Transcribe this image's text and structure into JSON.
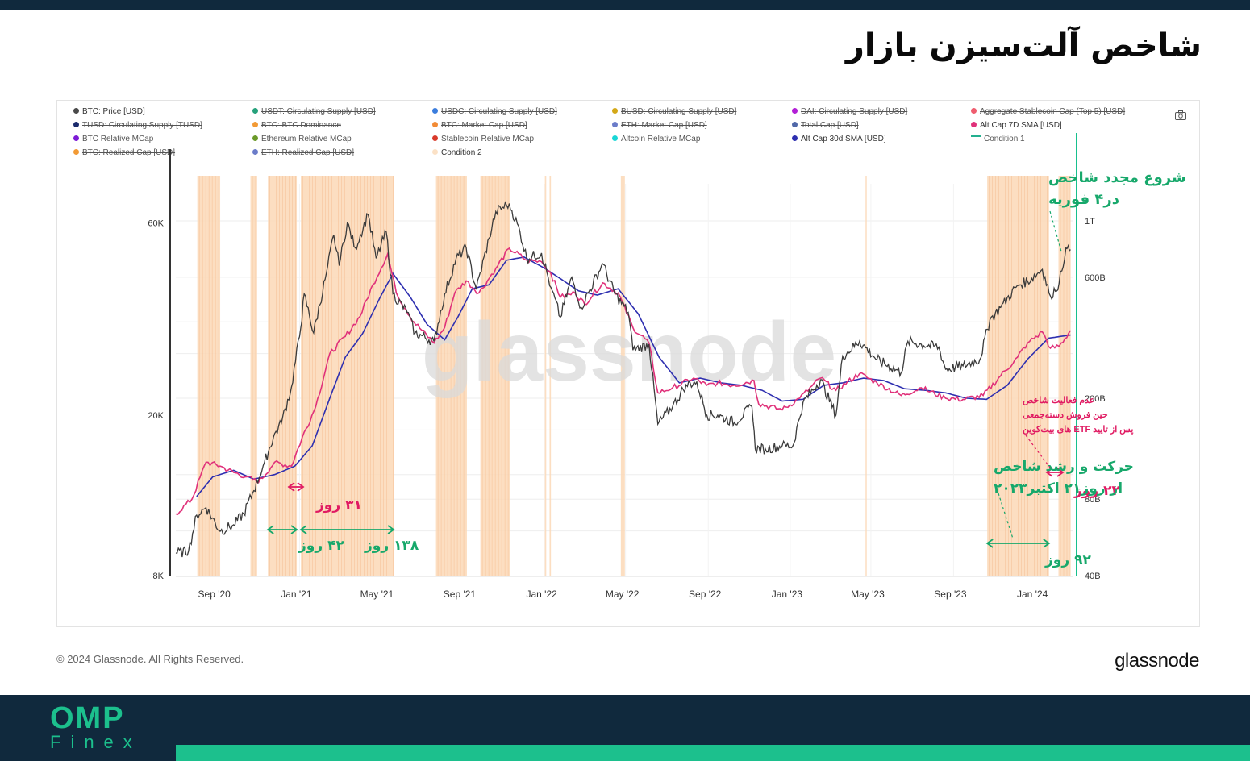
{
  "page_title": "شاخص آلت‌سیزن بازار",
  "copyright": "© 2024 Glassnode. All Rights Reserved.",
  "brand_logo": "glassnode",
  "watermark": "glassnode",
  "footer_logo": {
    "top": "OMP",
    "bottom": "Finex"
  },
  "colors": {
    "price": "#3b3b3b",
    "altcap_7d": "#e0317a",
    "altcap_30d": "#2e2fb0",
    "condition": "#fbd8b6",
    "annotation_green": "#17a86b",
    "annotation_pink": "#e01a62",
    "header": "#10293d",
    "accent": "#1cc08d"
  },
  "legend": [
    {
      "label": "BTC: Price [USD]",
      "color": "#4a4a4a",
      "active": true
    },
    {
      "label": "USDT: Circulating Supply [USD]",
      "color": "#26a17b",
      "active": false
    },
    {
      "label": "USDC: Circulating Supply [USD]",
      "color": "#3b7ddd",
      "active": false
    },
    {
      "label": "BUSD: Circulating Supply [USD]",
      "color": "#d4a817",
      "active": false
    },
    {
      "label": "DAI: Circulating Supply [USD]",
      "color": "#b21fd6",
      "active": false
    },
    {
      "label": "Aggregate Stablecoin Cap (Top 5) [USD]",
      "color": "#ef5d6f",
      "active": false
    },
    {
      "label": "TUSD: Circulating Supply [TUSD]",
      "color": "#1a2a6c",
      "active": false
    },
    {
      "label": "BTC: BTC Dominance",
      "color": "#f29a35",
      "active": false
    },
    {
      "label": "BTC: Market Cap [USD]",
      "color": "#f28b35",
      "active": false
    },
    {
      "label": "ETH: Market Cap [USD]",
      "color": "#6b7cc9",
      "active": false
    },
    {
      "label": "Total Cap [USD]",
      "color": "#5068a8",
      "active": false
    },
    {
      "label": "Alt Cap 7D SMA [USD]",
      "color": "#e0317a",
      "active": true
    },
    {
      "label": "BTC Relative MCap",
      "color": "#7d1bd6",
      "active": false
    },
    {
      "label": "Ethereum Relative MCap",
      "color": "#6b9a2a",
      "active": false
    },
    {
      "label": "Stablecoin Relative MCap",
      "color": "#d93a2b",
      "active": false
    },
    {
      "label": "Altcoin Relative MCap",
      "color": "#19d6d6",
      "active": false
    },
    {
      "label": "Alt Cap 30d SMA [USD]",
      "color": "#2e2fb0",
      "active": true
    },
    {
      "label": "Condition 1",
      "color": "#23b08f",
      "active": false,
      "line": true
    },
    {
      "label": "BTC: Realized Cap [USD]",
      "color": "#f29a35",
      "active": false
    },
    {
      "label": "ETH: Realized Cap [USD]",
      "color": "#6b7cc9",
      "active": false
    },
    {
      "label": "Condition 2",
      "color": "#fbe1c6",
      "active": true
    }
  ],
  "chart_data": {
    "type": "line",
    "x_ticks": [
      "Sep '20",
      "Jan '21",
      "May '21",
      "Sep '21",
      "Jan '22",
      "May '22",
      "Sep '22",
      "Jan '23",
      "May '23",
      "Sep '23",
      "Jan '24"
    ],
    "x_range": [
      "2020-07-01",
      "2024-02-25"
    ],
    "y_left": {
      "ticks": [
        "60K",
        "20K",
        "8K"
      ],
      "range": [
        8000,
        75000
      ],
      "scale": "log"
    },
    "y_right": {
      "ticks": [
        "1T",
        "600B",
        "200B",
        "80B",
        "40B"
      ],
      "range": [
        40,
        1400
      ],
      "scale": "log",
      "unit": "B USD"
    },
    "series": [
      {
        "name": "BTC: Price [USD]",
        "axis": "left",
        "points": [
          [
            "2020-07-01",
            9100
          ],
          [
            "2020-07-20",
            9200
          ],
          [
            "2020-08-01",
            11300
          ],
          [
            "2020-08-15",
            11800
          ],
          [
            "2020-09-05",
            10300
          ],
          [
            "2020-09-25",
            10700
          ],
          [
            "2020-10-10",
            11400
          ],
          [
            "2020-10-25",
            13000
          ],
          [
            "2020-11-10",
            15300
          ],
          [
            "2020-11-25",
            18000
          ],
          [
            "2020-12-05",
            19100
          ],
          [
            "2020-12-20",
            23500
          ],
          [
            "2021-01-03",
            33000
          ],
          [
            "2021-01-08",
            40000
          ],
          [
            "2021-01-22",
            32000
          ],
          [
            "2021-02-10",
            45000
          ],
          [
            "2021-02-21",
            56000
          ],
          [
            "2021-03-01",
            47000
          ],
          [
            "2021-03-13",
            60000
          ],
          [
            "2021-03-25",
            52000
          ],
          [
            "2021-04-13",
            63000
          ],
          [
            "2021-04-25",
            49000
          ],
          [
            "2021-05-10",
            57000
          ],
          [
            "2021-05-20",
            40000
          ],
          [
            "2021-06-10",
            36000
          ],
          [
            "2021-06-22",
            32000
          ],
          [
            "2021-07-20",
            30500
          ],
          [
            "2021-08-05",
            40000
          ],
          [
            "2021-08-22",
            49000
          ],
          [
            "2021-09-06",
            52000
          ],
          [
            "2021-09-21",
            41000
          ],
          [
            "2021-10-10",
            55000
          ],
          [
            "2021-10-20",
            64000
          ],
          [
            "2021-11-09",
            67000
          ],
          [
            "2021-11-25",
            57000
          ],
          [
            "2021-12-05",
            49000
          ],
          [
            "2021-12-27",
            50500
          ],
          [
            "2022-01-10",
            41500
          ],
          [
            "2022-01-24",
            35000
          ],
          [
            "2022-02-10",
            44000
          ],
          [
            "2022-02-24",
            37000
          ],
          [
            "2022-03-28",
            47500
          ],
          [
            "2022-04-15",
            40000
          ],
          [
            "2022-05-05",
            36000
          ],
          [
            "2022-05-12",
            29000
          ],
          [
            "2022-06-05",
            30000
          ],
          [
            "2022-06-18",
            19000
          ],
          [
            "2022-07-10",
            21000
          ],
          [
            "2022-07-30",
            23800
          ],
          [
            "2022-08-15",
            24200
          ],
          [
            "2022-08-30",
            20000
          ],
          [
            "2022-09-15",
            20000
          ],
          [
            "2022-10-10",
            19200
          ],
          [
            "2022-11-05",
            21000
          ],
          [
            "2022-11-10",
            16500
          ],
          [
            "2022-11-25",
            16500
          ],
          [
            "2022-12-20",
            16800
          ],
          [
            "2023-01-05",
            16800
          ],
          [
            "2023-01-20",
            21500
          ],
          [
            "2023-02-15",
            24500
          ],
          [
            "2023-03-10",
            20000
          ],
          [
            "2023-03-20",
            28000
          ],
          [
            "2023-04-14",
            30500
          ],
          [
            "2023-05-10",
            27500
          ],
          [
            "2023-06-15",
            25500
          ],
          [
            "2023-06-25",
            30500
          ],
          [
            "2023-07-15",
            30000
          ],
          [
            "2023-08-10",
            29500
          ],
          [
            "2023-08-20",
            26000
          ],
          [
            "2023-09-15",
            26500
          ],
          [
            "2023-10-10",
            27500
          ],
          [
            "2023-10-25",
            34500
          ],
          [
            "2023-11-10",
            37000
          ],
          [
            "2023-12-05",
            42000
          ],
          [
            "2023-12-20",
            43000
          ],
          [
            "2024-01-11",
            46000
          ],
          [
            "2024-01-23",
            39500
          ],
          [
            "2024-02-05",
            42500
          ],
          [
            "2024-02-15",
            52000
          ],
          [
            "2024-02-22",
            51500
          ]
        ]
      },
      {
        "name": "Alt Cap 7D SMA [USD]",
        "axis": "right",
        "points": [
          [
            "2020-07-01",
            70
          ],
          [
            "2020-07-25",
            80
          ],
          [
            "2020-08-15",
            112
          ],
          [
            "2020-09-05",
            108
          ],
          [
            "2020-09-25",
            102
          ],
          [
            "2020-10-15",
            98
          ],
          [
            "2020-11-01",
            93
          ],
          [
            "2020-11-25",
            112
          ],
          [
            "2020-12-20",
            108
          ],
          [
            "2021-01-05",
            140
          ],
          [
            "2021-01-25",
            185
          ],
          [
            "2021-02-15",
            300
          ],
          [
            "2021-03-10",
            350
          ],
          [
            "2021-04-01",
            420
          ],
          [
            "2021-04-20",
            560
          ],
          [
            "2021-05-12",
            740
          ],
          [
            "2021-05-25",
            520
          ],
          [
            "2021-06-20",
            400
          ],
          [
            "2021-07-20",
            330
          ],
          [
            "2021-08-05",
            380
          ],
          [
            "2021-08-20",
            520
          ],
          [
            "2021-09-06",
            580
          ],
          [
            "2021-09-25",
            520
          ],
          [
            "2021-10-20",
            650
          ],
          [
            "2021-11-09",
            780
          ],
          [
            "2021-12-05",
            700
          ],
          [
            "2021-12-27",
            690
          ],
          [
            "2022-01-10",
            620
          ],
          [
            "2022-01-24",
            500
          ],
          [
            "2022-02-15",
            520
          ],
          [
            "2022-03-01",
            470
          ],
          [
            "2022-03-28",
            570
          ],
          [
            "2022-04-20",
            520
          ],
          [
            "2022-05-12",
            380
          ],
          [
            "2022-06-05",
            330
          ],
          [
            "2022-06-18",
            210
          ],
          [
            "2022-07-10",
            220
          ],
          [
            "2022-08-10",
            240
          ],
          [
            "2022-08-30",
            225
          ],
          [
            "2022-09-15",
            230
          ],
          [
            "2022-10-10",
            225
          ],
          [
            "2022-11-08",
            235
          ],
          [
            "2022-11-15",
            190
          ],
          [
            "2022-12-20",
            180
          ],
          [
            "2023-01-15",
            200
          ],
          [
            "2023-02-15",
            240
          ],
          [
            "2023-03-10",
            215
          ],
          [
            "2023-04-14",
            250
          ],
          [
            "2023-05-10",
            230
          ],
          [
            "2023-06-15",
            205
          ],
          [
            "2023-07-15",
            220
          ],
          [
            "2023-08-20",
            200
          ],
          [
            "2023-09-15",
            198
          ],
          [
            "2023-10-15",
            205
          ],
          [
            "2023-11-10",
            245
          ],
          [
            "2023-12-05",
            290
          ],
          [
            "2023-12-20",
            330
          ],
          [
            "2024-01-11",
            365
          ],
          [
            "2024-01-23",
            315
          ],
          [
            "2024-02-05",
            320
          ],
          [
            "2024-02-22",
            370
          ]
        ]
      },
      {
        "name": "Alt Cap 30d SMA [USD]",
        "axis": "right",
        "points": [
          [
            "2020-08-01",
            82
          ],
          [
            "2020-08-25",
            98
          ],
          [
            "2020-09-25",
            104
          ],
          [
            "2020-10-25",
            96
          ],
          [
            "2020-11-25",
            100
          ],
          [
            "2020-12-25",
            108
          ],
          [
            "2021-01-20",
            130
          ],
          [
            "2021-02-15",
            200
          ],
          [
            "2021-03-10",
            290
          ],
          [
            "2021-04-05",
            360
          ],
          [
            "2021-05-01",
            500
          ],
          [
            "2021-05-20",
            620
          ],
          [
            "2021-06-15",
            500
          ],
          [
            "2021-07-10",
            390
          ],
          [
            "2021-08-05",
            340
          ],
          [
            "2021-08-25",
            420
          ],
          [
            "2021-09-15",
            540
          ],
          [
            "2021-10-10",
            560
          ],
          [
            "2021-11-05",
            700
          ],
          [
            "2021-12-01",
            720
          ],
          [
            "2022-01-01",
            650
          ],
          [
            "2022-01-25",
            590
          ],
          [
            "2022-02-20",
            530
          ],
          [
            "2022-03-20",
            510
          ],
          [
            "2022-04-20",
            540
          ],
          [
            "2022-05-20",
            430
          ],
          [
            "2022-06-20",
            290
          ],
          [
            "2022-07-20",
            230
          ],
          [
            "2022-08-20",
            240
          ],
          [
            "2022-09-20",
            230
          ],
          [
            "2022-10-20",
            225
          ],
          [
            "2022-11-20",
            215
          ],
          [
            "2022-12-20",
            195
          ],
          [
            "2023-01-20",
            198
          ],
          [
            "2023-02-20",
            225
          ],
          [
            "2023-03-20",
            230
          ],
          [
            "2023-04-20",
            240
          ],
          [
            "2023-05-20",
            235
          ],
          [
            "2023-06-20",
            218
          ],
          [
            "2023-07-20",
            215
          ],
          [
            "2023-08-20",
            210
          ],
          [
            "2023-09-20",
            200
          ],
          [
            "2023-10-20",
            198
          ],
          [
            "2023-11-20",
            225
          ],
          [
            "2023-12-20",
            285
          ],
          [
            "2024-01-20",
            345
          ],
          [
            "2024-02-22",
            355
          ]
        ]
      }
    ],
    "condition2_ranges": [
      [
        "2020-08-02",
        "2020-09-05"
      ],
      [
        "2020-10-20",
        "2020-10-30"
      ],
      [
        "2020-11-15",
        "2020-12-28"
      ],
      [
        "2021-01-03",
        "2021-05-21"
      ],
      [
        "2021-07-23",
        "2021-09-07"
      ],
      [
        "2021-09-27",
        "2021-11-10"
      ],
      [
        "2022-01-01",
        "2022-01-03"
      ],
      [
        "2022-01-08",
        "2022-01-10"
      ],
      [
        "2022-04-24",
        "2022-04-30"
      ],
      [
        "2023-04-23",
        "2023-04-24"
      ],
      [
        "2023-10-21",
        "2024-01-21"
      ],
      [
        "2024-02-04",
        "2024-02-22"
      ]
    ],
    "annotations": [
      {
        "id": "restart",
        "text": [
          "شروع مجدد شاخص",
          "در۴ فوریه"
        ],
        "color": "green"
      },
      {
        "id": "days31",
        "text": "۳۱ روز",
        "color": "pink",
        "from": "2020-12-10",
        "to": "2021-01-10"
      },
      {
        "id": "days42",
        "text": "۴۲ روز",
        "color": "green",
        "from": "2020-11-15",
        "to": "2020-12-28"
      },
      {
        "id": "days138",
        "text": "۱۳۸ روز",
        "color": "green",
        "from": "2021-01-03",
        "to": "2021-05-21"
      },
      {
        "id": "days92",
        "text": "۹۲ روز",
        "color": "green",
        "from": "2023-10-21",
        "to": "2024-01-21"
      },
      {
        "id": "days22",
        "text": "۲۲ روز",
        "color": "pink",
        "from": "2024-01-12",
        "to": "2024-02-04"
      },
      {
        "id": "growth",
        "text": [
          "حرکت و رشد شاخص",
          "از روز۲۱ اکتبر۲۰۲۳"
        ],
        "color": "green"
      },
      {
        "id": "inactive",
        "text": [
          "عدم فعالیت شاخص",
          "حین فروش دسته‌جمعی",
          "پس از تایید ETF های بیت‌کوین"
        ],
        "color": "pink"
      }
    ],
    "grid": true,
    "legend_position": "top"
  }
}
